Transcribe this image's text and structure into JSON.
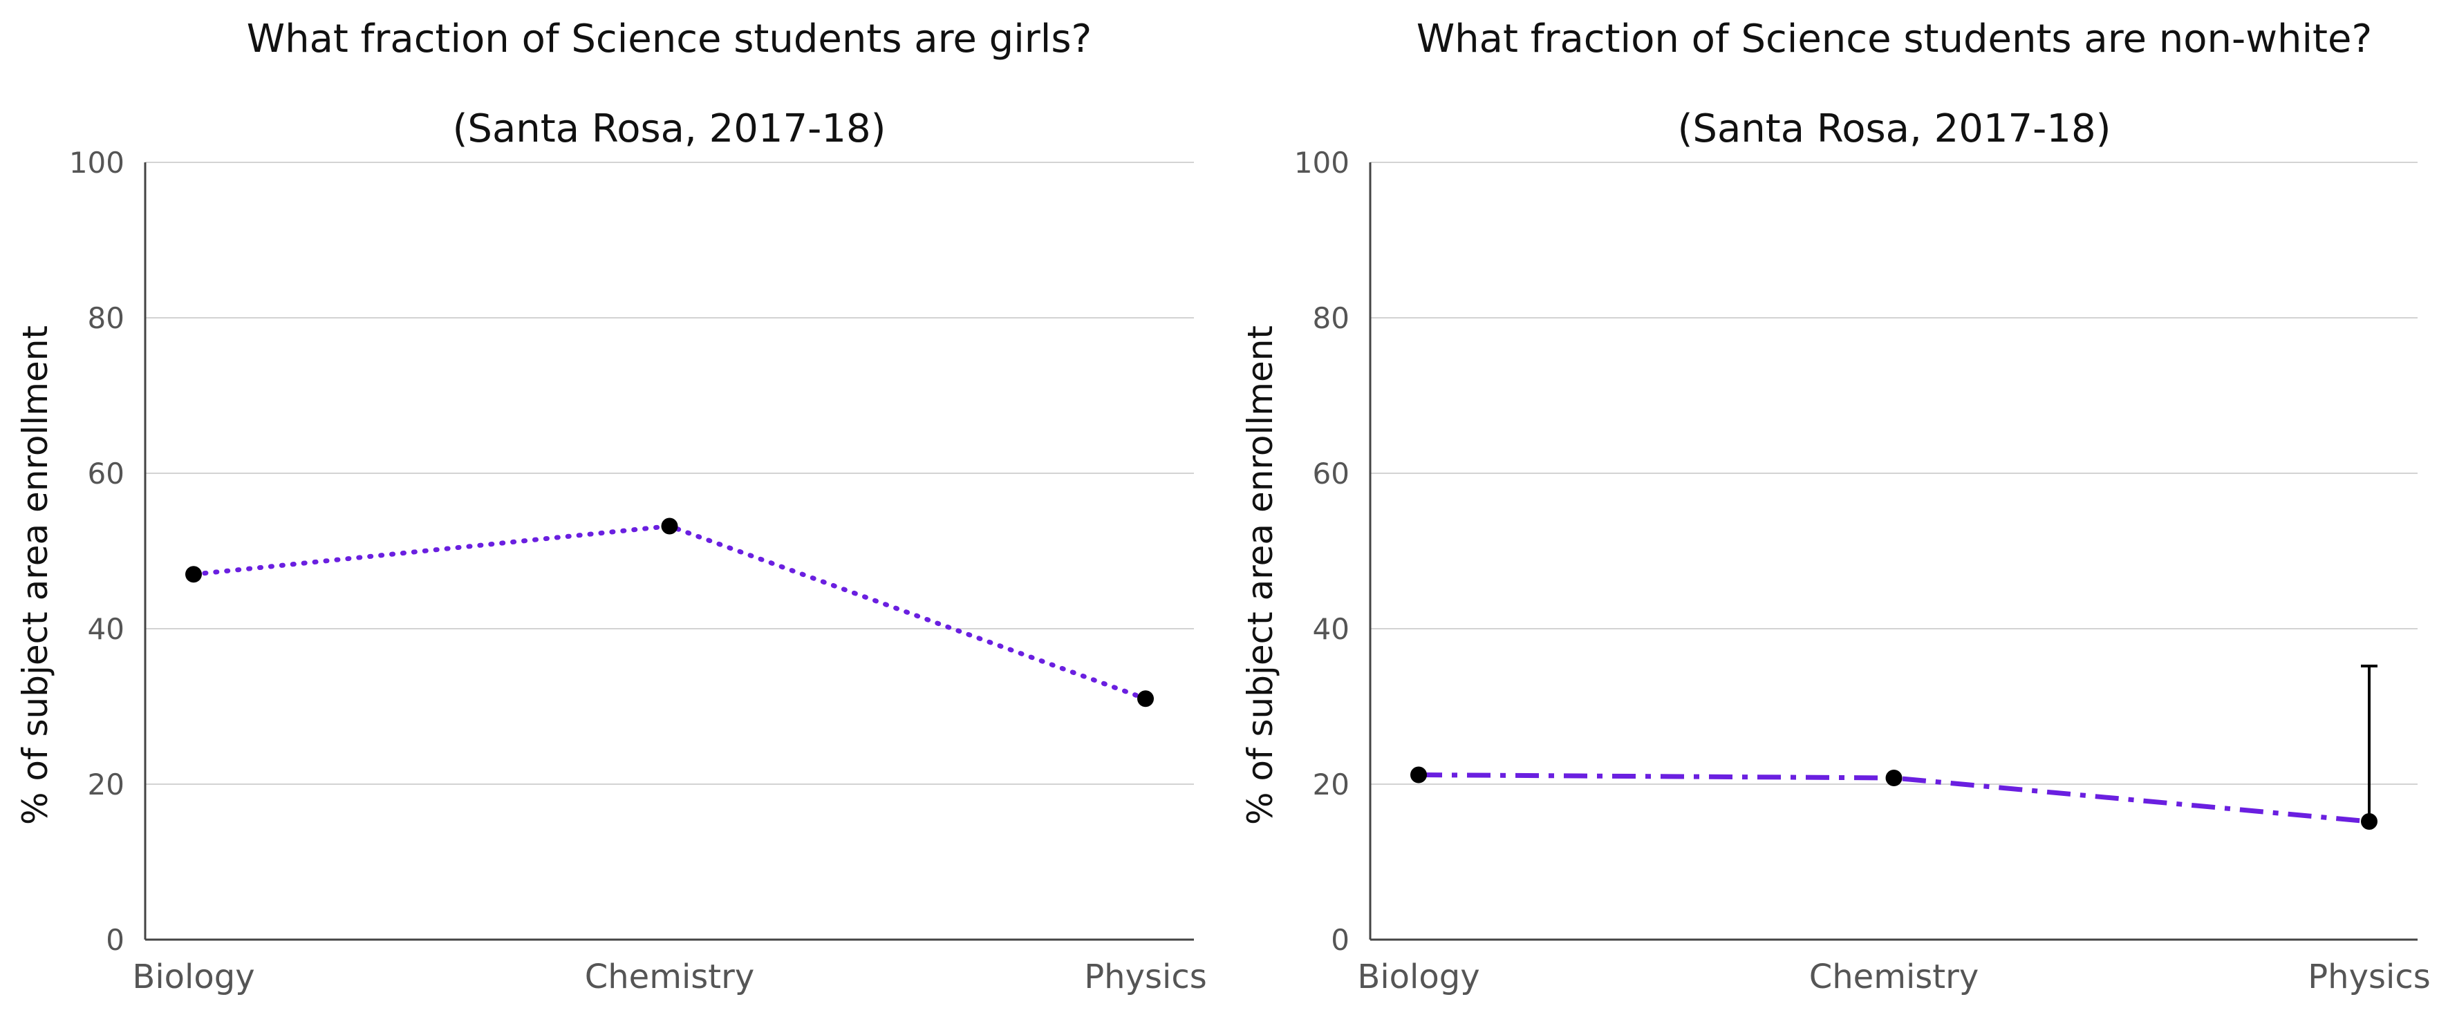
{
  "colors": {
    "line": "#6a1fe0",
    "marker": "#000000",
    "grid": "#d3d3d3",
    "axis": "#444444",
    "errorbar": "#000000"
  },
  "chart_data": [
    {
      "type": "line",
      "title": "What fraction of Science students are girls?",
      "subtitle": "(Santa Rosa, 2017-18)",
      "xlabel": "",
      "ylabel": "% of subject area enrollment",
      "categories": [
        "Biology",
        "Chemistry",
        "Physics"
      ],
      "series": [
        {
          "values": [
            47,
            53.2,
            31
          ],
          "line_style": "dotted"
        }
      ],
      "ylim": [
        0,
        100
      ],
      "yticks": [
        0,
        20,
        40,
        60,
        80,
        100
      ],
      "grid": true,
      "legend": "none"
    },
    {
      "type": "line",
      "title": "What fraction of Science students are non-white?",
      "subtitle": "(Santa Rosa, 2017-18)",
      "xlabel": "",
      "ylabel": "% of subject area enrollment",
      "categories": [
        "Biology",
        "Chemistry",
        "Physics"
      ],
      "series": [
        {
          "values": [
            21.2,
            20.8,
            15.2
          ],
          "line_style": "dashdot",
          "error_bars": [
            null,
            null,
            {
              "low": 15.2,
              "high": 35.2
            }
          ]
        }
      ],
      "ylim": [
        0,
        100
      ],
      "yticks": [
        0,
        20,
        40,
        60,
        80,
        100
      ],
      "grid": true,
      "legend": "none"
    }
  ]
}
